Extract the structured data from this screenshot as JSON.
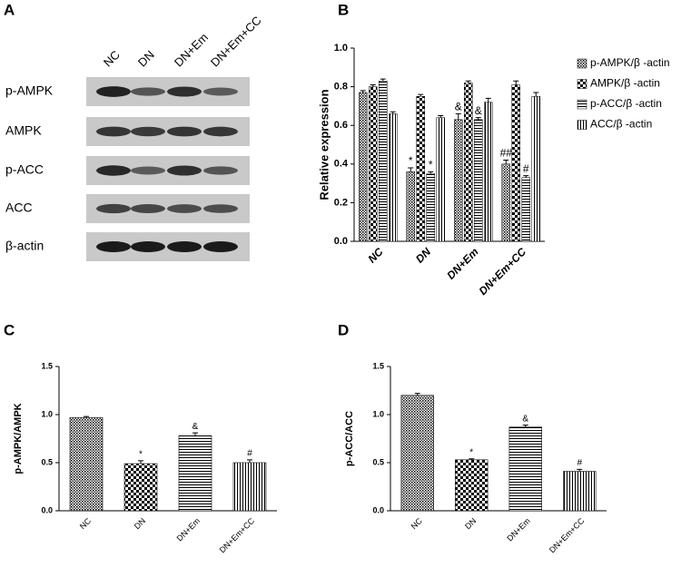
{
  "blot": {
    "label": "A",
    "lanes": [
      "NC",
      "DN",
      "DN+Em",
      "DN+Em+CC"
    ],
    "rows": [
      "p-AMPK",
      "AMPK",
      "p-ACC",
      "ACC",
      "β-actin"
    ]
  },
  "chart_data": [
    {
      "type": "bar",
      "panel": "B",
      "ylabel": "Relative expression",
      "categories": [
        "NC",
        "DN",
        "DN+Em",
        "DN+Em+CC"
      ],
      "series": [
        {
          "name": "p-AMPK/β -actin",
          "color": "#000000",
          "values": [
            0.77,
            0.36,
            0.63,
            0.4
          ],
          "errors": [
            0.01,
            0.02,
            0.03,
            0.02
          ],
          "markers": [
            null,
            "*",
            "&",
            "##"
          ]
        },
        {
          "name": "AMPK/β -actin",
          "color": "#000000",
          "values": [
            0.8,
            0.75,
            0.82,
            0.81
          ],
          "errors": [
            0.01,
            0.01,
            0.01,
            0.02
          ],
          "markers": [
            null,
            null,
            null,
            null
          ]
        },
        {
          "name": "p-ACC/β -actin",
          "color": "#000000",
          "values": [
            0.83,
            0.35,
            0.63,
            0.33
          ],
          "errors": [
            0.01,
            0.01,
            0.01,
            0.01
          ],
          "markers": [
            null,
            "*",
            "&",
            "#"
          ]
        },
        {
          "name": "ACC/β -actin",
          "color": "#000000",
          "values": [
            0.66,
            0.64,
            0.72,
            0.75
          ],
          "errors": [
            0.01,
            0.01,
            0.02,
            0.02
          ],
          "markers": [
            null,
            null,
            null,
            null
          ]
        }
      ],
      "ylim": [
        0,
        1.0
      ],
      "yticks": [
        {
          "value": 0,
          "label": "0.0"
        },
        {
          "value": 0.2,
          "label": "0.2"
        },
        {
          "value": 0.4,
          "label": "0.4"
        },
        {
          "value": 0.6,
          "label": "0.6"
        },
        {
          "value": 0.8,
          "label": "0.8"
        },
        {
          "value": 1.0,
          "label": "1.0"
        }
      ]
    },
    {
      "type": "bar",
      "panel": "C",
      "ylabel": "p-AMPK/AMPK",
      "categories": [
        "NC",
        "DN",
        "DN+Em",
        "DN+Em+CC"
      ],
      "values": [
        0.97,
        0.49,
        0.78,
        0.5
      ],
      "errors": [
        0.01,
        0.03,
        0.03,
        0.03
      ],
      "markers": [
        null,
        "*",
        "&",
        "#"
      ],
      "ylim": [
        0,
        1.5
      ],
      "yticks": [
        {
          "value": 0,
          "label": "0.0"
        },
        {
          "value": 0.5,
          "label": "0.5"
        },
        {
          "value": 1.0,
          "label": "1.0"
        },
        {
          "value": 1.5,
          "label": "1.5"
        }
      ]
    },
    {
      "type": "bar",
      "panel": "D",
      "ylabel": "p-ACC/ACC",
      "categories": [
        "NC",
        "DN",
        "DN+Em",
        "DN+Em+CC"
      ],
      "values": [
        1.2,
        0.53,
        0.87,
        0.41
      ],
      "errors": [
        0.02,
        0.01,
        0.02,
        0.02
      ],
      "markers": [
        null,
        "*",
        "&",
        "#"
      ],
      "ylim": [
        0,
        1.5
      ],
      "yticks": [
        {
          "value": 0,
          "label": "0.0"
        },
        {
          "value": 0.5,
          "label": "0.5"
        },
        {
          "value": 1.0,
          "label": "1.0"
        },
        {
          "value": 1.5,
          "label": "1.5"
        }
      ]
    }
  ]
}
